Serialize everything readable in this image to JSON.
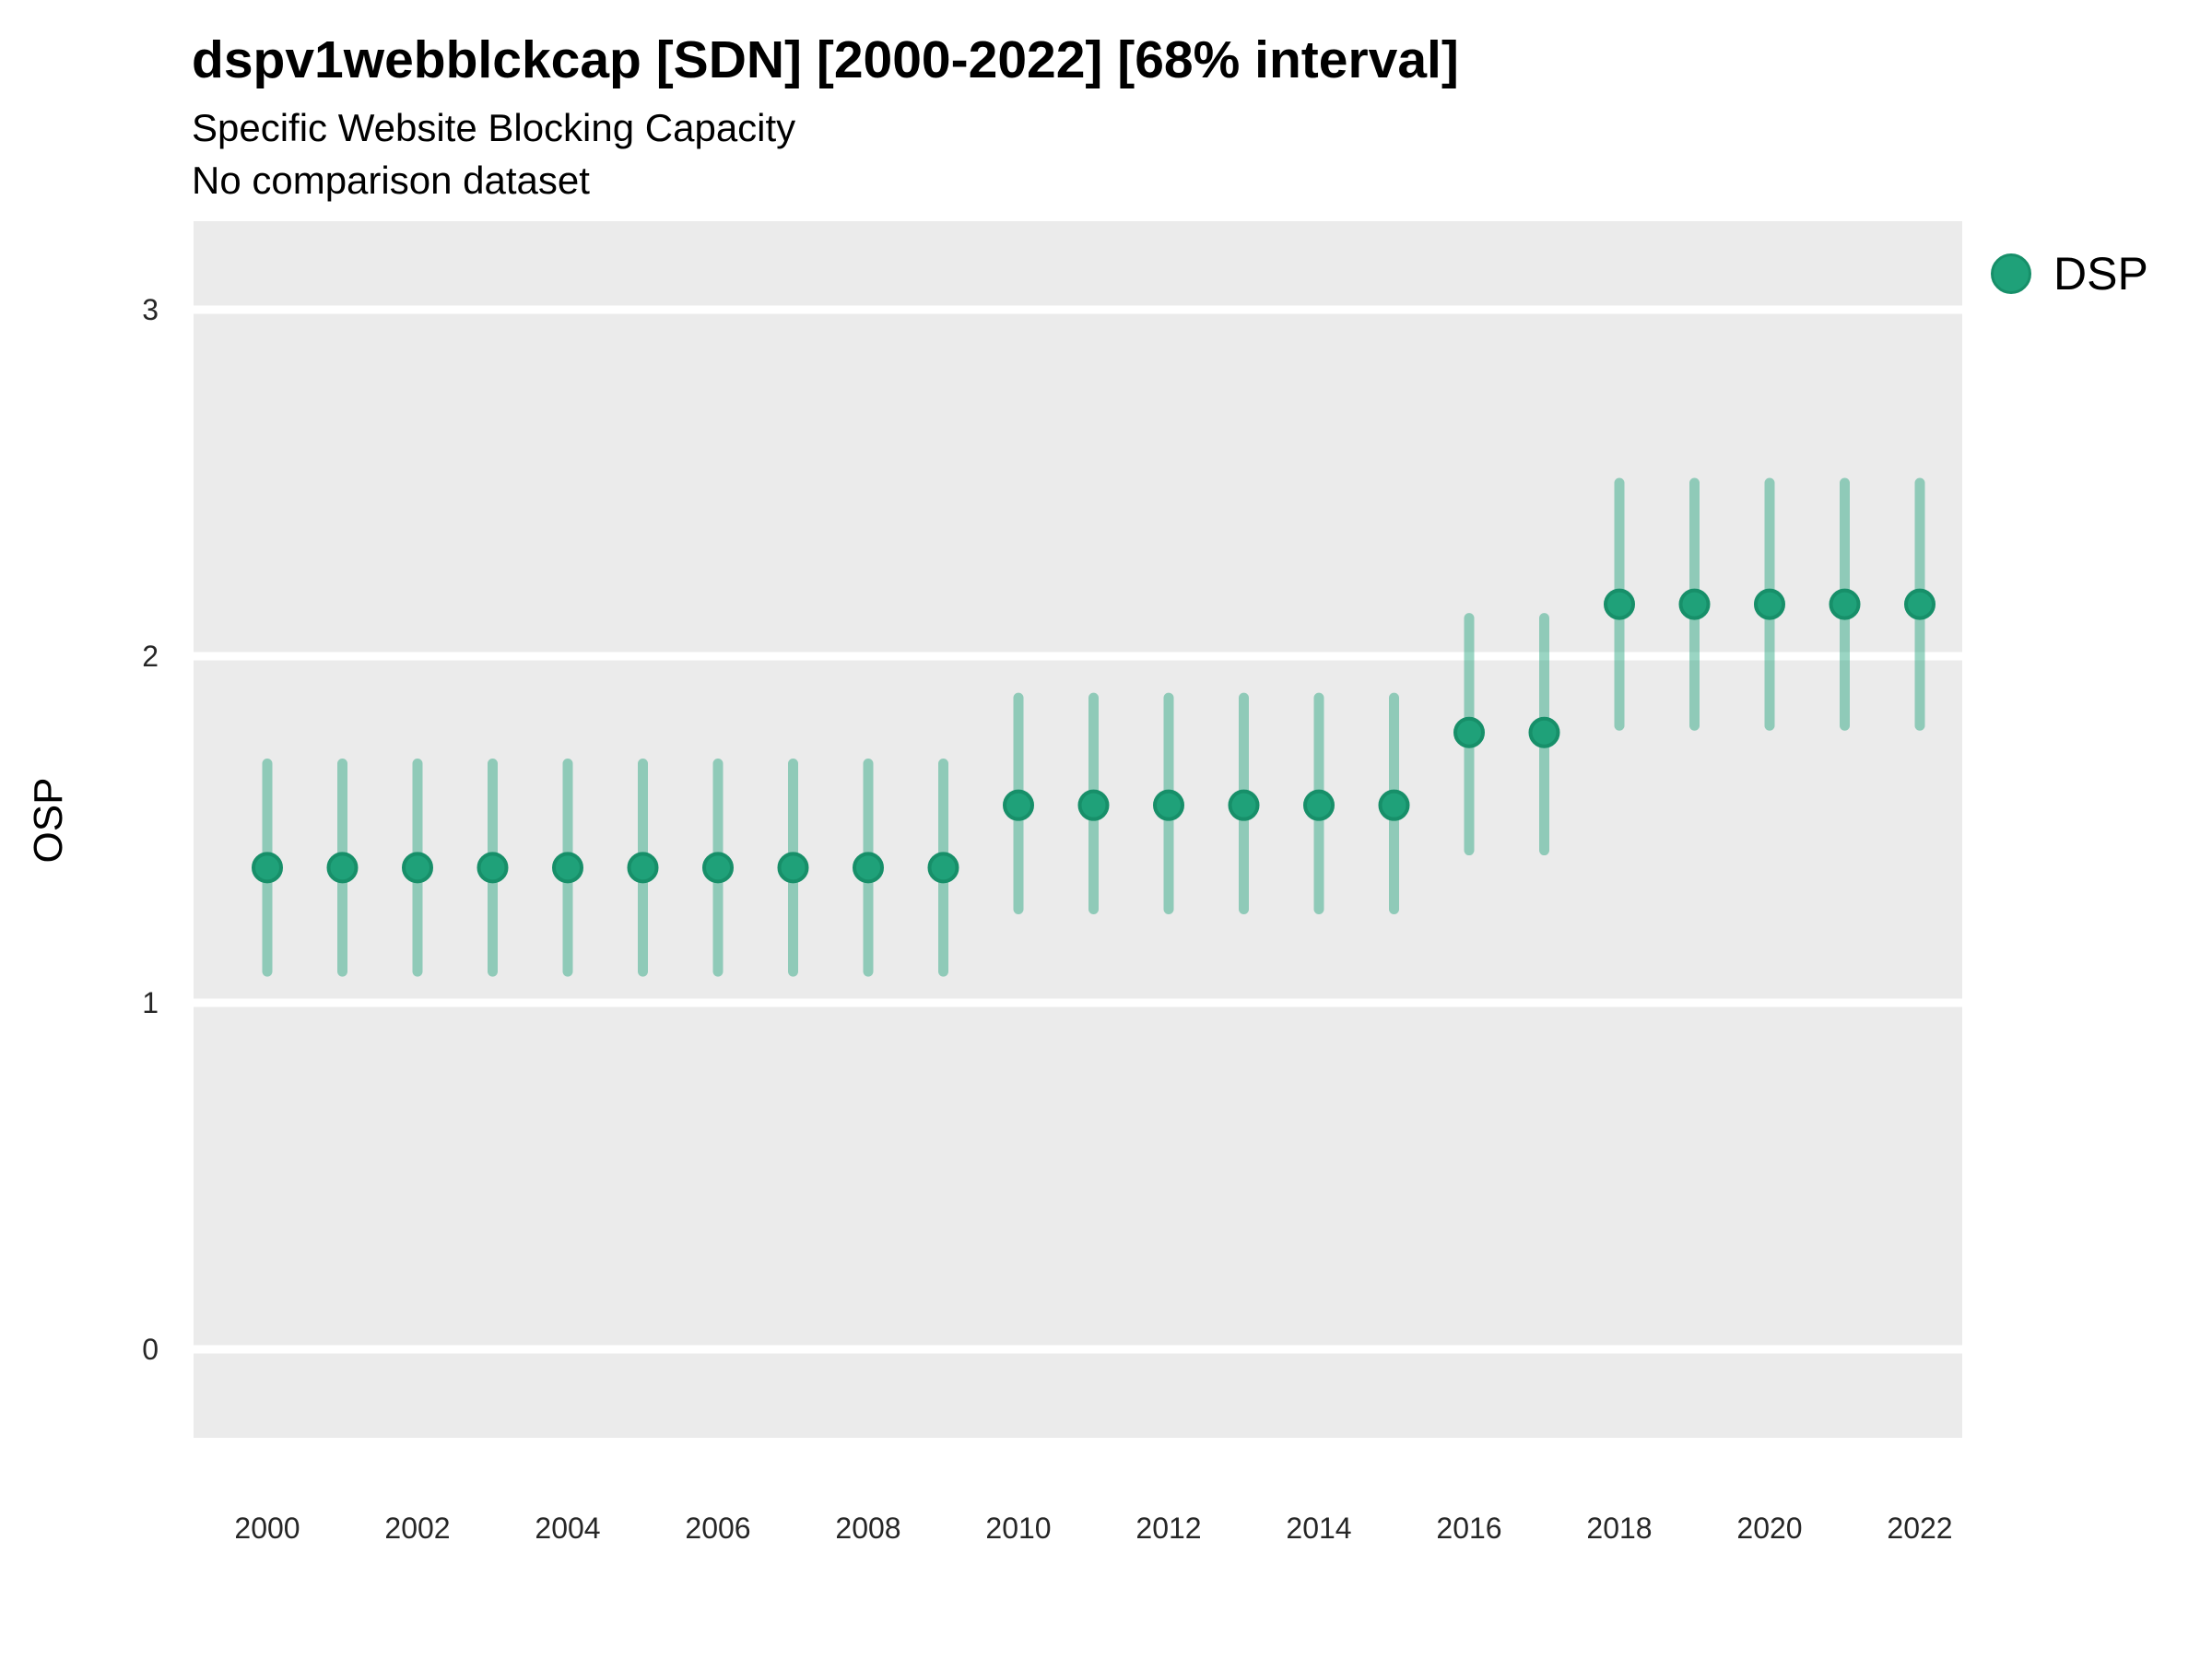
{
  "header": {
    "title": "dspv1webblckcap [SDN] [2000-2022] [68% interval]",
    "subtitle": "Specific Website Blocking Capacity",
    "note": "No comparison dataset"
  },
  "legend": {
    "label": "DSP",
    "position": "right-top"
  },
  "colors": {
    "point": "#1fa179",
    "point_edge": "#178f69",
    "interval_apparent": "#8ccab4",
    "interval_opacity": 0.45,
    "panel_bg": "#ebebeb",
    "gridline": "#ffffff",
    "title_text": "#000000",
    "tick_text": "#262626"
  },
  "chart_data": {
    "type": "scatter",
    "subtype": "pointrange-interval",
    "title": "dspv1webblckcap [SDN] [2000-2022] [68% interval]",
    "subtitle": "Specific Website Blocking Capacity",
    "note": "No comparison dataset",
    "xlabel": "",
    "ylabel": "OSP",
    "ylim": [
      -0.26,
      3.26
    ],
    "yticks": [
      0,
      1,
      2,
      3
    ],
    "xticks": [
      2000,
      2002,
      2004,
      2006,
      2008,
      2010,
      2012,
      2014,
      2016,
      2018,
      2020,
      2022
    ],
    "grid": "major-horizontal-white-on-gray",
    "legend_position": "right",
    "interval_level": "68%",
    "series": [
      {
        "name": "DSP",
        "points": [
          {
            "year": 2000,
            "value": 1.39,
            "lo": 1.09,
            "hi": 1.69
          },
          {
            "year": 2001,
            "value": 1.39,
            "lo": 1.09,
            "hi": 1.69
          },
          {
            "year": 2002,
            "value": 1.39,
            "lo": 1.09,
            "hi": 1.69
          },
          {
            "year": 2003,
            "value": 1.39,
            "lo": 1.09,
            "hi": 1.69
          },
          {
            "year": 2004,
            "value": 1.39,
            "lo": 1.09,
            "hi": 1.69
          },
          {
            "year": 2005,
            "value": 1.39,
            "lo": 1.09,
            "hi": 1.69
          },
          {
            "year": 2006,
            "value": 1.39,
            "lo": 1.09,
            "hi": 1.69
          },
          {
            "year": 2007,
            "value": 1.39,
            "lo": 1.09,
            "hi": 1.69
          },
          {
            "year": 2008,
            "value": 1.39,
            "lo": 1.09,
            "hi": 1.69
          },
          {
            "year": 2009,
            "value": 1.39,
            "lo": 1.09,
            "hi": 1.69
          },
          {
            "year": 2010,
            "value": 1.57,
            "lo": 1.27,
            "hi": 1.88
          },
          {
            "year": 2011,
            "value": 1.57,
            "lo": 1.27,
            "hi": 1.88
          },
          {
            "year": 2012,
            "value": 1.57,
            "lo": 1.27,
            "hi": 1.88
          },
          {
            "year": 2013,
            "value": 1.57,
            "lo": 1.27,
            "hi": 1.88
          },
          {
            "year": 2014,
            "value": 1.57,
            "lo": 1.27,
            "hi": 1.88
          },
          {
            "year": 2015,
            "value": 1.57,
            "lo": 1.27,
            "hi": 1.88
          },
          {
            "year": 2016,
            "value": 1.78,
            "lo": 1.44,
            "hi": 2.11
          },
          {
            "year": 2017,
            "value": 1.78,
            "lo": 1.44,
            "hi": 2.11
          },
          {
            "year": 2018,
            "value": 2.15,
            "lo": 1.8,
            "hi": 2.5
          },
          {
            "year": 2019,
            "value": 2.15,
            "lo": 1.8,
            "hi": 2.5
          },
          {
            "year": 2020,
            "value": 2.15,
            "lo": 1.8,
            "hi": 2.5
          },
          {
            "year": 2021,
            "value": 2.15,
            "lo": 1.8,
            "hi": 2.5
          },
          {
            "year": 2022,
            "value": 2.15,
            "lo": 1.8,
            "hi": 2.5
          }
        ]
      }
    ]
  }
}
